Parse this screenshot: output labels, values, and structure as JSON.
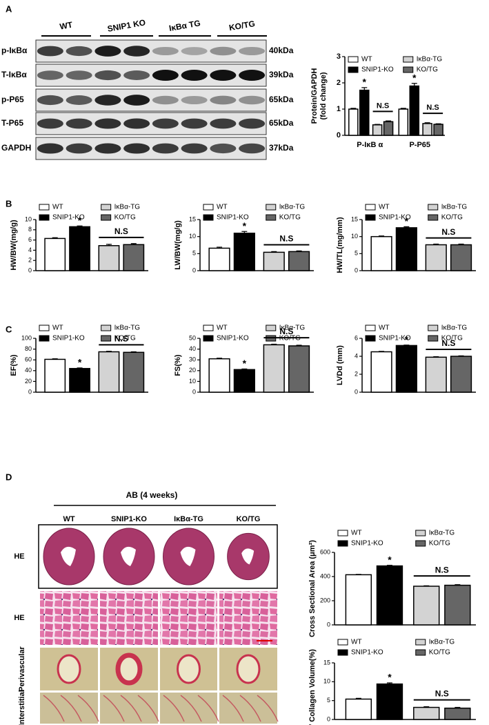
{
  "panel_labels": [
    "A",
    "B",
    "C",
    "D"
  ],
  "blot": {
    "groups": [
      "WT",
      "SNIP1 KO",
      "IκBα TG",
      "KO/TG"
    ],
    "rows": [
      {
        "label": "p-IκBα",
        "size": "40kDa"
      },
      {
        "label": "T-IκBα",
        "size": "39kDa"
      },
      {
        "label": "p-P65",
        "size": "65kDa"
      },
      {
        "label": "T-P65",
        "size": "65kDa"
      },
      {
        "label": "GAPDH",
        "size": "37kDa"
      }
    ]
  },
  "histology": {
    "title": "AB (4 weeks)",
    "columns": [
      "WT",
      "SNIP1-KO",
      "IκBα-TG",
      "KO/TG"
    ],
    "rows": [
      "HE",
      "HE",
      "Perivascular",
      "Interstitial"
    ]
  },
  "chart_data": [
    {
      "type": "bar",
      "ylabel": [
        "Protein/GAPDH",
        "(fold change)"
      ],
      "categories": [
        "P-IκB α",
        "P-P65"
      ],
      "ylim": [
        0,
        3
      ],
      "yticks": [
        0,
        1,
        2,
        3
      ],
      "significance": "*",
      "ns_label": "N.S",
      "series": [
        {
          "name": "WT",
          "color": "#ffffff",
          "values": [
            1,
            1
          ],
          "errors": [
            0.03,
            0.03
          ]
        },
        {
          "name": "SNIP1-KO",
          "color": "#000000",
          "values": [
            1.72,
            1.88
          ],
          "errors": [
            0.1,
            0.1
          ]
        },
        {
          "name": "IκBα-TG",
          "color": "#d3d3d3",
          "values": [
            0.4,
            0.45
          ],
          "errors": [
            0.02,
            0.03
          ]
        },
        {
          "name": "KO/TG",
          "color": "#666666",
          "values": [
            0.52,
            0.42
          ],
          "errors": [
            0.03,
            0.02
          ]
        }
      ]
    },
    {
      "type": "bar",
      "ylabel": "HW/BW(mg/g)",
      "categories": [
        null
      ],
      "ylim": [
        0,
        10
      ],
      "yticks": [
        0,
        2,
        4,
        6,
        8,
        10
      ],
      "significance": "*",
      "ns_label": "N.S",
      "series": [
        {
          "name": "WT",
          "color": "#ffffff",
          "values": [
            6.3
          ],
          "errors": [
            0.15
          ]
        },
        {
          "name": "SNIP1-KO",
          "color": "#000000",
          "values": [
            8.6
          ],
          "errors": [
            0.15
          ]
        },
        {
          "name": "IκBα-TG",
          "color": "#d3d3d3",
          "values": [
            4.9
          ],
          "errors": [
            0.25
          ]
        },
        {
          "name": "KO/TG",
          "color": "#666666",
          "values": [
            5.1
          ],
          "errors": [
            0.2
          ]
        }
      ]
    },
    {
      "type": "bar",
      "ylabel": "LW/BW(mg/g)",
      "categories": [
        null
      ],
      "ylim": [
        0,
        15
      ],
      "yticks": [
        0,
        5,
        10,
        15
      ],
      "significance": "*",
      "ns_label": "N.S",
      "series": [
        {
          "name": "WT",
          "color": "#ffffff",
          "values": [
            6.6
          ],
          "errors": [
            0.3
          ]
        },
        {
          "name": "SNIP1-KO",
          "color": "#000000",
          "values": [
            11.0
          ],
          "errors": [
            0.5
          ]
        },
        {
          "name": "IκBα-TG",
          "color": "#d3d3d3",
          "values": [
            5.4
          ],
          "errors": [
            0.2
          ]
        },
        {
          "name": "KO/TG",
          "color": "#666666",
          "values": [
            5.6
          ],
          "errors": [
            0.2
          ]
        }
      ]
    },
    {
      "type": "bar",
      "ylabel": "HW/TL(mg/mm)",
      "categories": [
        null
      ],
      "ylim": [
        0,
        15
      ],
      "yticks": [
        0,
        5,
        10,
        15
      ],
      "significance": "*",
      "ns_label": "N.S",
      "series": [
        {
          "name": "WT",
          "color": "#ffffff",
          "values": [
            10.0
          ],
          "errors": [
            0.2
          ]
        },
        {
          "name": "SNIP1-KO",
          "color": "#000000",
          "values": [
            12.6
          ],
          "errors": [
            0.3
          ]
        },
        {
          "name": "IκBα-TG",
          "color": "#d3d3d3",
          "values": [
            7.6
          ],
          "errors": [
            0.2
          ]
        },
        {
          "name": "KO/TG",
          "color": "#666666",
          "values": [
            7.6
          ],
          "errors": [
            0.2
          ]
        }
      ]
    },
    {
      "type": "bar",
      "ylabel": "EF(%)",
      "categories": [
        null
      ],
      "ylim": [
        0,
        100
      ],
      "yticks": [
        0,
        20,
        40,
        60,
        80,
        100
      ],
      "significance": "*",
      "ns_label": "N.S",
      "series": [
        {
          "name": "WT",
          "color": "#ffffff",
          "values": [
            61
          ],
          "errors": [
            1
          ]
        },
        {
          "name": "SNIP1-KO",
          "color": "#000000",
          "values": [
            44
          ],
          "errors": [
            1
          ]
        },
        {
          "name": "IκBα-TG",
          "color": "#d3d3d3",
          "values": [
            75
          ],
          "errors": [
            1
          ]
        },
        {
          "name": "KO/TG",
          "color": "#666666",
          "values": [
            74
          ],
          "errors": [
            1
          ]
        }
      ]
    },
    {
      "type": "bar",
      "ylabel": "FS(%)",
      "categories": [
        null
      ],
      "ylim": [
        0,
        50
      ],
      "yticks": [
        0,
        10,
        20,
        30,
        40,
        50
      ],
      "significance": "*",
      "ns_label": "N.S",
      "series": [
        {
          "name": "WT",
          "color": "#ffffff",
          "values": [
            31
          ],
          "errors": [
            0.6
          ]
        },
        {
          "name": "SNIP1-KO",
          "color": "#000000",
          "values": [
            21
          ],
          "errors": [
            0.6
          ]
        },
        {
          "name": "IκBα-TG",
          "color": "#d3d3d3",
          "values": [
            44
          ],
          "errors": [
            0.6
          ]
        },
        {
          "name": "KO/TG",
          "color": "#666666",
          "values": [
            43
          ],
          "errors": [
            0.6
          ]
        }
      ]
    },
    {
      "type": "bar",
      "ylabel": "LVDd  (mm)",
      "categories": [
        null
      ],
      "ylim": [
        0,
        6
      ],
      "yticks": [
        0,
        2,
        4,
        6
      ],
      "significance": "*",
      "ns_label": "N.S",
      "series": [
        {
          "name": "WT",
          "color": "#ffffff",
          "values": [
            4.5
          ],
          "errors": [
            0.05
          ]
        },
        {
          "name": "SNIP1-KO",
          "color": "#000000",
          "values": [
            5.2
          ],
          "errors": [
            0.05
          ]
        },
        {
          "name": "IκBα-TG",
          "color": "#d3d3d3",
          "values": [
            3.9
          ],
          "errors": [
            0.05
          ]
        },
        {
          "name": "KO/TG",
          "color": "#666666",
          "values": [
            4.0
          ],
          "errors": [
            0.05
          ]
        }
      ]
    },
    {
      "type": "bar",
      "ylabel": "Cross Sectional Area (μm²)",
      "categories": [
        null
      ],
      "ylim": [
        0,
        600
      ],
      "yticks": [
        0,
        200,
        400,
        600
      ],
      "significance": "*",
      "ns_label": "N.S",
      "series": [
        {
          "name": "WT",
          "color": "#ffffff",
          "values": [
            415
          ],
          "errors": [
            3
          ]
        },
        {
          "name": "SNIP1-KO",
          "color": "#000000",
          "values": [
            488
          ],
          "errors": [
            5
          ]
        },
        {
          "name": "IκBα-TG",
          "color": "#d3d3d3",
          "values": [
            320
          ],
          "errors": [
            4
          ]
        },
        {
          "name": "KO/TG",
          "color": "#666666",
          "values": [
            328
          ],
          "errors": [
            5
          ]
        }
      ]
    },
    {
      "type": "bar",
      "ylabel": "LV Collagen Volume(%)",
      "categories": [
        null
      ],
      "ylim": [
        0,
        15
      ],
      "yticks": [
        0,
        5,
        10,
        15
      ],
      "significance": "*",
      "ns_label": "N.S",
      "series": [
        {
          "name": "WT",
          "color": "#ffffff",
          "values": [
            5.4
          ],
          "errors": [
            0.2
          ]
        },
        {
          "name": "SNIP1-KO",
          "color": "#000000",
          "values": [
            9.4
          ],
          "errors": [
            0.3
          ]
        },
        {
          "name": "IκBα-TG",
          "color": "#d3d3d3",
          "values": [
            3.2
          ],
          "errors": [
            0.2
          ]
        },
        {
          "name": "KO/TG",
          "color": "#666666",
          "values": [
            3.0
          ],
          "errors": [
            0.2
          ]
        }
      ]
    }
  ]
}
